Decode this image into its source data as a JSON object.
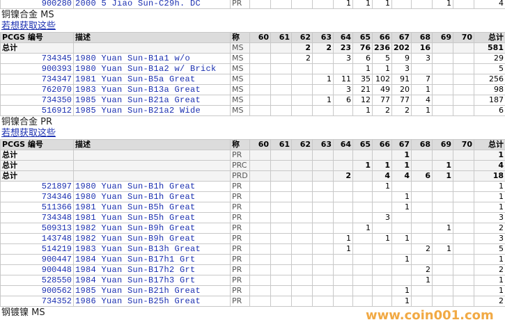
{
  "top_row": {
    "pcgs": "900280",
    "desc": "2000 5 Jiao Sun-C29h. DC",
    "grade": "PR",
    "cells": [
      null,
      null,
      null,
      null,
      1,
      1,
      1,
      null,
      null,
      1,
      null
    ],
    "total": 4
  },
  "sections": [
    {
      "title": "铜镍合金 MS",
      "link": "若想获取这些",
      "header": [
        "PCGS 编号",
        "描述",
        "称",
        "60",
        "61",
        "62",
        "63",
        "64",
        "65",
        "66",
        "67",
        "68",
        "69",
        "70",
        "总计"
      ],
      "rows": [
        {
          "label": "总计",
          "grade": "MS",
          "cells": [
            null,
            null,
            2,
            2,
            23,
            76,
            236,
            202,
            16,
            null,
            null
          ],
          "total": 581
        },
        {
          "pcgs": "734345",
          "desc": "1980 Yuan Sun-B1a1 w/o",
          "grade": "MS",
          "cells": [
            null,
            null,
            2,
            null,
            3,
            6,
            5,
            9,
            3,
            null,
            null
          ],
          "total": 29
        },
        {
          "pcgs": "900393",
          "desc": "1980 Yuan Sun-B1a2 w/ Brick",
          "grade": "MS",
          "cells": [
            null,
            null,
            null,
            null,
            null,
            1,
            1,
            3,
            null,
            null,
            null
          ],
          "total": 5
        },
        {
          "pcgs": "734347",
          "desc": "1981 Yuan Sun-B5a Great",
          "grade": "MS",
          "cells": [
            null,
            null,
            null,
            1,
            11,
            35,
            102,
            91,
            7,
            null,
            null
          ],
          "total": 256
        },
        {
          "pcgs": "762070",
          "desc": "1983 Yuan Sun-B13a Great",
          "grade": "MS",
          "cells": [
            null,
            null,
            null,
            null,
            3,
            21,
            49,
            20,
            1,
            null,
            null
          ],
          "total": 98
        },
        {
          "pcgs": "734350",
          "desc": "1985 Yuan Sun-B21a Great",
          "grade": "MS",
          "cells": [
            null,
            null,
            null,
            1,
            6,
            12,
            77,
            77,
            4,
            null,
            null
          ],
          "total": 187
        },
        {
          "pcgs": "516912",
          "desc": "1985 Yuan Sun-B21a2 Wide",
          "grade": "MS",
          "cells": [
            null,
            null,
            null,
            null,
            null,
            1,
            2,
            2,
            1,
            null,
            null
          ],
          "total": 6
        }
      ]
    },
    {
      "title": "铜镍合金 PR",
      "link": "若想获取这些",
      "header": [
        "PCGS 编号",
        "描述",
        "称",
        "60",
        "61",
        "62",
        "63",
        "64",
        "65",
        "66",
        "67",
        "68",
        "69",
        "70",
        "总计"
      ],
      "rows": [
        {
          "label": "总计",
          "grade": "PR",
          "cells": [
            null,
            null,
            null,
            null,
            null,
            null,
            null,
            1,
            null,
            null,
            null
          ],
          "total": 1
        },
        {
          "label": "总计",
          "grade": "PRC",
          "cells": [
            null,
            null,
            null,
            null,
            null,
            1,
            1,
            1,
            null,
            1,
            null
          ],
          "total": 4
        },
        {
          "label": "总计",
          "grade": "PRD",
          "cells": [
            null,
            null,
            null,
            null,
            2,
            null,
            4,
            4,
            6,
            1,
            null
          ],
          "total": 18
        },
        {
          "pcgs": "521897",
          "desc": "1980 Yuan Sun-B1h Great",
          "grade": "PR",
          "cells": [
            null,
            null,
            null,
            null,
            null,
            null,
            1,
            null,
            null,
            null,
            null
          ],
          "total": 1
        },
        {
          "pcgs": "734346",
          "desc": "1980 Yuan Sun-B1h Great",
          "grade": "PR",
          "cells": [
            null,
            null,
            null,
            null,
            null,
            null,
            null,
            1,
            null,
            null,
            null
          ],
          "total": 1
        },
        {
          "pcgs": "511366",
          "desc": "1981 Yuan Sun-B5h Great",
          "grade": "PR",
          "cells": [
            null,
            null,
            null,
            null,
            null,
            null,
            null,
            1,
            null,
            null,
            null
          ],
          "total": 1
        },
        {
          "pcgs": "734348",
          "desc": "1981 Yuan Sun-B5h Great",
          "grade": "PR",
          "cells": [
            null,
            null,
            null,
            null,
            null,
            null,
            3,
            null,
            null,
            null,
            null
          ],
          "total": 3
        },
        {
          "pcgs": "509313",
          "desc": "1982 Yuan Sun-B9h Great",
          "grade": "PR",
          "cells": [
            null,
            null,
            null,
            null,
            null,
            1,
            null,
            null,
            null,
            1,
            null
          ],
          "total": 2
        },
        {
          "pcgs": "143748",
          "desc": "1982 Yuan Sun-B9h Great",
          "grade": "PR",
          "cells": [
            null,
            null,
            null,
            null,
            1,
            null,
            1,
            1,
            null,
            null,
            null
          ],
          "total": 3
        },
        {
          "pcgs": "514219",
          "desc": "1983 Yuan Sun-B13h Great",
          "grade": "PR",
          "cells": [
            null,
            null,
            null,
            null,
            1,
            null,
            null,
            null,
            2,
            1,
            null
          ],
          "total": 5
        },
        {
          "pcgs": "900447",
          "desc": "1984 Yuan Sun-B17h1 Grt",
          "grade": "PR",
          "cells": [
            null,
            null,
            null,
            null,
            null,
            null,
            null,
            1,
            null,
            null,
            null
          ],
          "total": 1
        },
        {
          "pcgs": "900448",
          "desc": "1984 Yuan Sun-B17h2 Grt",
          "grade": "PR",
          "cells": [
            null,
            null,
            null,
            null,
            null,
            null,
            null,
            null,
            2,
            null,
            null
          ],
          "total": 2
        },
        {
          "pcgs": "528550",
          "desc": "1984 Yuan Sun-B17h3 Grt",
          "grade": "PR",
          "cells": [
            null,
            null,
            null,
            null,
            null,
            null,
            null,
            null,
            1,
            null,
            null
          ],
          "total": 1
        },
        {
          "pcgs": "900562",
          "desc": "1985 Yuan Sun-B21h Great",
          "grade": "PR",
          "cells": [
            null,
            null,
            null,
            null,
            null,
            null,
            null,
            1,
            null,
            null,
            null
          ],
          "total": 1
        },
        {
          "pcgs": "734352",
          "desc": "1986 Yuan Sun-B25h Great",
          "grade": "PR",
          "cells": [
            null,
            null,
            null,
            null,
            null,
            null,
            null,
            1,
            null,
            null,
            null
          ],
          "total": 2
        }
      ]
    }
  ],
  "last_heading": "钢镀镍 MS",
  "watermark": "www.coin001.com"
}
